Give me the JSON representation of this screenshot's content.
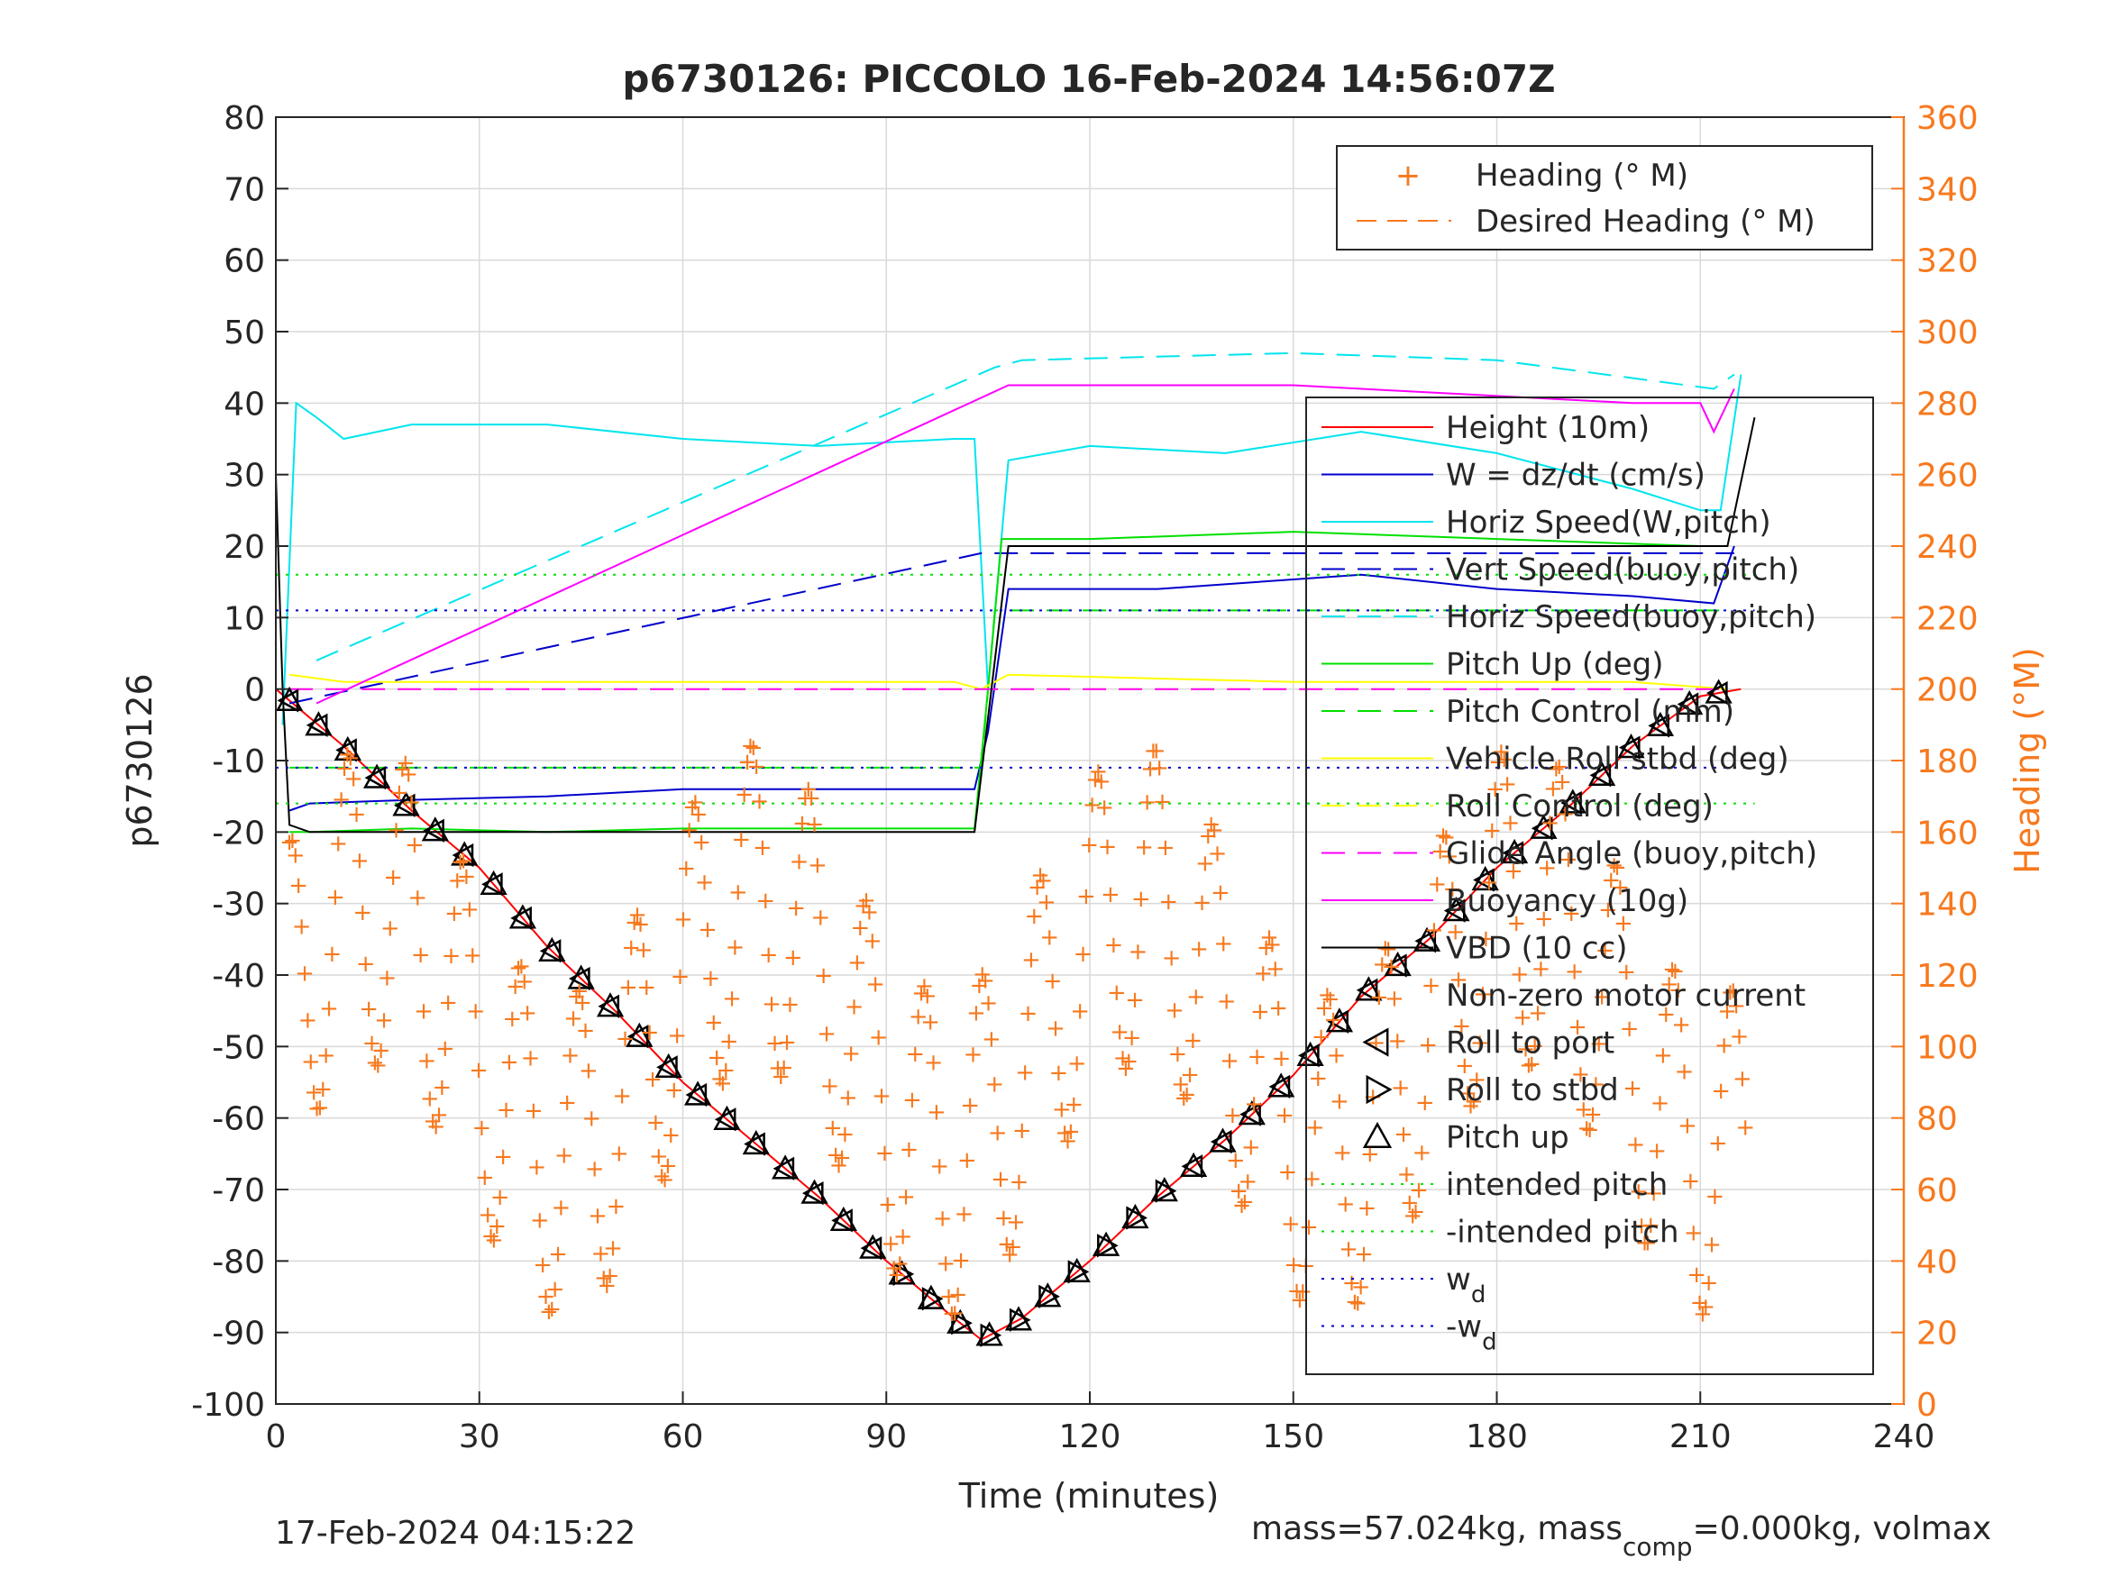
{
  "chart_data": {
    "type": "line",
    "title": "p6730126: PICCOLO 16-Feb-2024 14:56:07Z",
    "xlabel": "Time (minutes)",
    "ylabel": "p6730126",
    "y2label": "Heading (°M)",
    "xlim": [
      0,
      240
    ],
    "ylim": [
      -100,
      80
    ],
    "y2lim": [
      0,
      360
    ],
    "x_ticks": [
      "0",
      "30",
      "60",
      "90",
      "120",
      "150",
      "180",
      "210",
      "240"
    ],
    "y_ticks": [
      "80",
      "70",
      "60",
      "50",
      "40",
      "30",
      "20",
      "10",
      "0",
      "-10",
      "-20",
      "-30",
      "-40",
      "-50",
      "-60",
      "-70",
      "-80",
      "-90",
      "-100"
    ],
    "y2_ticks": [
      "360",
      "340",
      "320",
      "300",
      "280",
      "260",
      "240",
      "220",
      "200",
      "180",
      "160",
      "140",
      "120",
      "100",
      "80",
      "60",
      "40",
      "20",
      "0"
    ],
    "grid": true,
    "colors": {
      "height": "#ff0000",
      "w": "#0000cc",
      "horiz_speed": "#00e5ee",
      "pitch": "#00e000",
      "roll": "#ffff00",
      "glide": "#ff00ff",
      "vbd": "#000000",
      "heading": "#f7791e",
      "axis_right": "#f7791e"
    },
    "series": [
      {
        "name": "Height (10m)",
        "x": [
          0,
          10,
          20,
          30,
          40,
          50,
          60,
          70,
          80,
          90,
          100,
          104,
          110,
          120,
          130,
          140,
          150,
          160,
          170,
          180,
          190,
          200,
          210,
          216
        ],
        "y": [
          0,
          -8,
          -17,
          -25,
          -36,
          -45,
          -55,
          -63,
          -71,
          -80,
          -88,
          -91,
          -88,
          -80,
          -71,
          -63,
          -54,
          -43,
          -35,
          -25,
          -17,
          -8,
          -1,
          0
        ]
      },
      {
        "name": "W = dz/dt (cm/s)",
        "x": [
          2,
          5,
          20,
          40,
          60,
          80,
          103,
          105,
          108,
          130,
          160,
          180,
          200,
          212,
          215
        ],
        "y": [
          -17,
          -16,
          -15.5,
          -15,
          -14,
          -14,
          -14,
          -6,
          14,
          14,
          16,
          14,
          13,
          12,
          20
        ]
      },
      {
        "name": "Horiz Speed(W,pitch)",
        "x": [
          1,
          3,
          6,
          10,
          20,
          40,
          60,
          80,
          100,
          103,
          105,
          108,
          120,
          140,
          160,
          180,
          200,
          210,
          213,
          216
        ],
        "y": [
          -5,
          40,
          38,
          35,
          37,
          37,
          35,
          34,
          35,
          35,
          0,
          32,
          34,
          33,
          36,
          33,
          28,
          25,
          25,
          44
        ]
      },
      {
        "name": "Vert Speed(buoy,pitch)",
        "x": [
          2,
          104,
          105,
          215
        ],
        "y": [
          -2,
          19,
          19,
          19
        ]
      },
      {
        "name": "Horiz Speed(buoy,pitch)",
        "x": [
          6,
          106,
          110,
          150,
          180,
          212,
          215
        ],
        "y": [
          4,
          45,
          46,
          47,
          46,
          42,
          44
        ]
      },
      {
        "name": "Pitch Up (deg)",
        "x": [
          2,
          5,
          20,
          40,
          60,
          80,
          103,
          105,
          107,
          120,
          150,
          180,
          210,
          214
        ],
        "y": [
          -20,
          -20,
          -19.5,
          -20,
          -19.5,
          -19.5,
          -19.5,
          0,
          21,
          21,
          22,
          21,
          20,
          20
        ]
      },
      {
        "name": "Pitch Control (mm)",
        "x": [
          2,
          104,
          106,
          214
        ],
        "y": [
          -11,
          -11,
          11,
          11
        ]
      },
      {
        "name": "Vehicle Roll stbd (deg)",
        "x": [
          2,
          10,
          50,
          100,
          104,
          108,
          150,
          200,
          214
        ],
        "y": [
          2,
          1,
          1,
          1,
          0,
          2,
          1,
          1,
          0
        ]
      },
      {
        "name": "Roll Control (deg)",
        "x": [
          2,
          104,
          106,
          214
        ],
        "y": [
          0,
          0,
          0,
          0
        ]
      },
      {
        "name": "Glide Angle (buoy,pitch)",
        "x": [
          2,
          104,
          105,
          214
        ],
        "y": [
          0,
          0,
          0,
          0
        ]
      },
      {
        "name": "Buoyancy (10g)",
        "x": [
          6,
          108,
          150,
          200,
          210,
          212,
          215
        ],
        "y": [
          -2,
          42.5,
          42.5,
          40,
          40,
          36,
          42
        ]
      },
      {
        "name": "VBD (10 cc)",
        "x": [
          0,
          1,
          2,
          5,
          103,
          108,
          210,
          214,
          218
        ],
        "y": [
          30,
          0,
          -19,
          -20,
          -20,
          20,
          20,
          20,
          38
        ]
      },
      {
        "name": "Non-zero motor current",
        "x": [],
        "y": []
      },
      {
        "name": "Roll to port",
        "x": [],
        "y": []
      },
      {
        "name": "Roll to stbd",
        "x": [],
        "y": []
      },
      {
        "name": "Pitch up",
        "x": [],
        "y": []
      },
      {
        "name": "intended pitch",
        "x": [
          0,
          218
        ],
        "y": [
          16,
          16
        ]
      },
      {
        "name": "-intended pitch",
        "x": [
          0,
          218
        ],
        "y": [
          -16,
          -16
        ]
      },
      {
        "name": "w_d",
        "x": [
          0,
          218
        ],
        "y": [
          11,
          11
        ]
      },
      {
        "name": "-w_d",
        "x": [
          0,
          218
        ],
        "y": [
          -11,
          -11
        ]
      }
    ],
    "heading_series": [
      {
        "name": "Heading (° M)",
        "axis": "right"
      },
      {
        "name": "Desired Heading (° M)",
        "axis": "right"
      }
    ],
    "legend_right": {
      "placement": "top-right"
    },
    "legend_main": {
      "placement": "right",
      "items": [
        "Height (10m)",
        "W = dz/dt (cm/s)",
        "Horiz Speed(W,pitch)",
        "Vert Speed(buoy,pitch)",
        "Horiz Speed(buoy,pitch)",
        "Pitch Up (deg)",
        "Pitch Control (mm)",
        "Vehicle Roll stbd (deg)",
        "Roll Control (deg)",
        "Glide Angle (buoy,pitch)",
        "Buoyancy (10g)",
        "VBD (10 cc)",
        "Non-zero motor current",
        "Roll to port",
        "Roll to stbd",
        "Pitch up",
        "intended pitch",
        "-intended pitch",
        "w",
        "-w"
      ]
    },
    "legend_sub": "d",
    "footer_left": "17-Feb-2024 04:15:22",
    "footer_right_main": "mass=57.024kg, mass",
    "footer_right_sub": "comp",
    "footer_right_tail": "=0.000kg, volmax"
  }
}
